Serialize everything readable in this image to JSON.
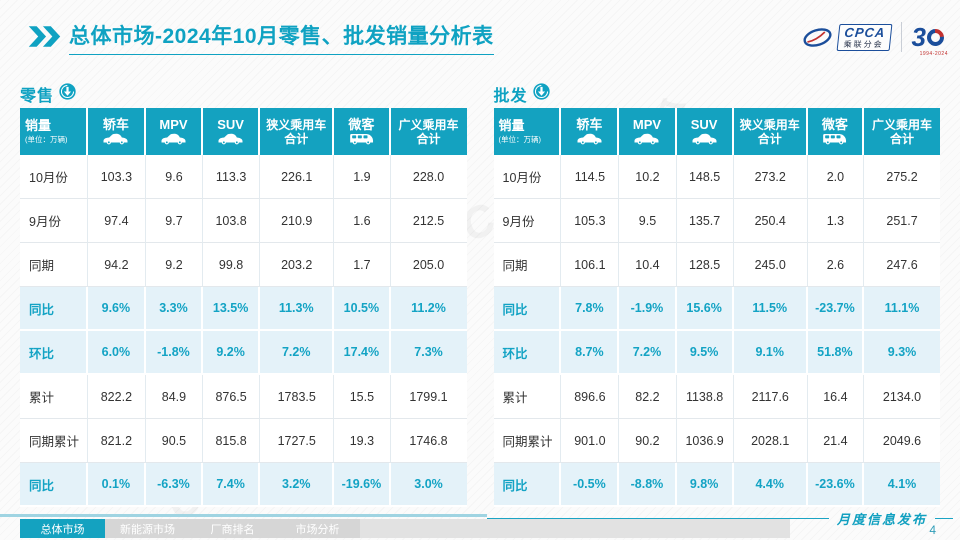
{
  "colors": {
    "accent": "#0fa2c2",
    "header_bg": "#14a2c0",
    "hl_bg": "#e4f2f9",
    "hl_text": "#13a3c4",
    "body_text": "#333333",
    "tab_bg": "#d6d6d6",
    "line_soft": "#9fd4e2"
  },
  "header": {
    "title_emphasis": "总体市场",
    "title_rest": "-2024年10月零售、批发销量分析表",
    "cpca_logo": {
      "acronym": "CPCA",
      "name": "乘联分会"
    },
    "anniversary": {
      "number3": "3",
      "years": "1994-2024"
    }
  },
  "columns": [
    {
      "label": "销量",
      "sub": "(单位：万辆)"
    },
    {
      "label": "轿车",
      "icon": "car"
    },
    {
      "label": "MPV",
      "icon": "car"
    },
    {
      "label": "SUV",
      "icon": "car"
    },
    {
      "label": "狭义乘用车",
      "label2": "合计"
    },
    {
      "label": "微客",
      "icon": "van"
    },
    {
      "label": "广义乘用车",
      "label2": "合计"
    }
  ],
  "tables": [
    {
      "label": "零售",
      "rows": [
        {
          "label": "10月份",
          "highlight": false,
          "values": [
            "103.3",
            "9.6",
            "113.3",
            "226.1",
            "1.9",
            "228.0"
          ]
        },
        {
          "label": "9月份",
          "highlight": false,
          "values": [
            "97.4",
            "9.7",
            "103.8",
            "210.9",
            "1.6",
            "212.5"
          ]
        },
        {
          "label": "同期",
          "highlight": false,
          "values": [
            "94.2",
            "9.2",
            "99.8",
            "203.2",
            "1.7",
            "205.0"
          ]
        },
        {
          "label": "同比",
          "highlight": true,
          "values": [
            "9.6%",
            "3.3%",
            "13.5%",
            "11.3%",
            "10.5%",
            "11.2%"
          ]
        },
        {
          "label": "环比",
          "highlight": true,
          "values": [
            "6.0%",
            "-1.8%",
            "9.2%",
            "7.2%",
            "17.4%",
            "7.3%"
          ]
        },
        {
          "label": "累计",
          "highlight": false,
          "values": [
            "822.2",
            "84.9",
            "876.5",
            "1783.5",
            "15.5",
            "1799.1"
          ]
        },
        {
          "label": "同期累计",
          "highlight": false,
          "values": [
            "821.2",
            "90.5",
            "815.8",
            "1727.5",
            "19.3",
            "1746.8"
          ]
        },
        {
          "label": "同比",
          "highlight": true,
          "values": [
            "0.1%",
            "-6.3%",
            "7.4%",
            "3.2%",
            "-19.6%",
            "3.0%"
          ]
        }
      ]
    },
    {
      "label": "批发",
      "rows": [
        {
          "label": "10月份",
          "highlight": false,
          "values": [
            "114.5",
            "10.2",
            "148.5",
            "273.2",
            "2.0",
            "275.2"
          ]
        },
        {
          "label": "9月份",
          "highlight": false,
          "values": [
            "105.3",
            "9.5",
            "135.7",
            "250.4",
            "1.3",
            "251.7"
          ]
        },
        {
          "label": "同期",
          "highlight": false,
          "values": [
            "106.1",
            "10.4",
            "128.5",
            "245.0",
            "2.6",
            "247.6"
          ]
        },
        {
          "label": "同比",
          "highlight": true,
          "values": [
            "7.8%",
            "-1.9%",
            "15.6%",
            "11.5%",
            "-23.7%",
            "11.1%"
          ]
        },
        {
          "label": "环比",
          "highlight": true,
          "values": [
            "8.7%",
            "7.2%",
            "9.5%",
            "9.1%",
            "51.8%",
            "9.3%"
          ]
        },
        {
          "label": "累计",
          "highlight": false,
          "values": [
            "896.6",
            "82.2",
            "1138.8",
            "2117.6",
            "16.4",
            "2134.0"
          ]
        },
        {
          "label": "同期累计",
          "highlight": false,
          "values": [
            "901.0",
            "90.2",
            "1036.9",
            "2028.1",
            "21.4",
            "2049.6"
          ]
        },
        {
          "label": "同比",
          "highlight": true,
          "values": [
            "-0.5%",
            "-8.8%",
            "9.8%",
            "4.4%",
            "-23.6%",
            "4.1%"
          ]
        }
      ]
    }
  ],
  "watermark": {
    "text": "CPCA 乘联分会"
  },
  "footer": {
    "tabs": [
      {
        "label": "总体市场",
        "active": true
      },
      {
        "label": "新能源市场",
        "active": false
      },
      {
        "label": "厂商排名",
        "active": false
      },
      {
        "label": "市场分析",
        "active": false
      }
    ],
    "publication": "月度信息发布",
    "page": "4"
  }
}
